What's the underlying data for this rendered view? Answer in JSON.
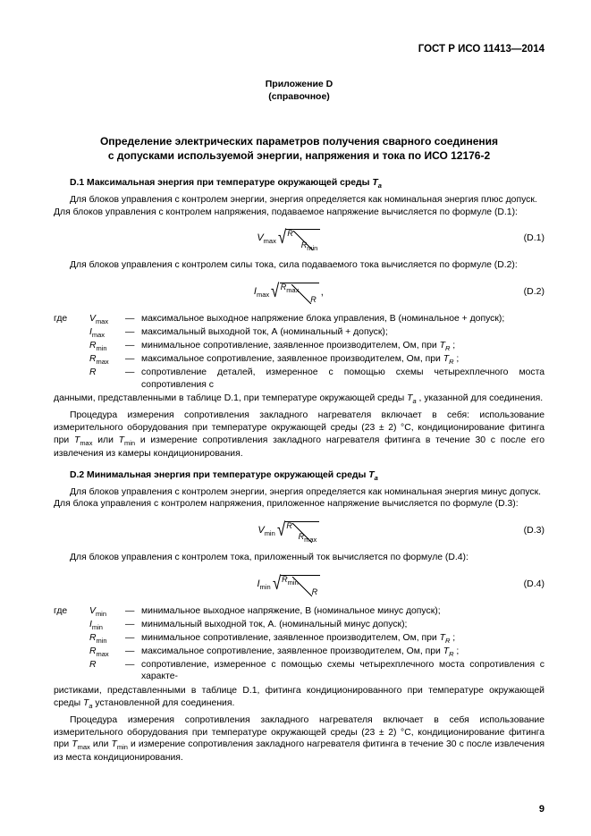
{
  "header": {
    "standard": "ГОСТ Р ИСО 11413—2014"
  },
  "appendix": {
    "label_line1": "Приложение D",
    "label_line2": "(справочное)"
  },
  "title": {
    "line1": "Определение электрических параметров получения сварного соединения",
    "line2": "с допусками используемой энергии, напряжения и тока по ИСО 12176-2"
  },
  "d1": {
    "heading_prefix": "D.1 Максимальная энергия при температуре окружающей среды ",
    "heading_symbol": "T",
    "heading_sub": "a",
    "p1": "Для блоков управления с контролем энергии, энергия определяется как номинальная энергия плюс допуск.",
    "p2": "Для блоков управления с контролем напряжения, подаваемое напряжение вычисляется по формуле (D.1):",
    "eq1": {
      "lhs": "V",
      "lhs_sub": "max",
      "num": "R",
      "den": "R",
      "den_sub": "min",
      "ref": "(D.1)"
    },
    "p3": "Для блоков управления с контролем силы тока, сила подаваемого тока вычисляется по формуле (D.2):",
    "eq2": {
      "lhs": "I",
      "lhs_sub": "max",
      "num": "R",
      "num_sub": "max",
      "den": "R",
      "tail": ",",
      "ref": "(D.2)"
    },
    "defs": [
      {
        "where": "где",
        "sym": "V",
        "sub": "max",
        "dash": "—",
        "text": "максимальное выходное напряжение блока управления, В (номинальное + допуск);"
      },
      {
        "where": "",
        "sym": "I",
        "sub": "max",
        "dash": "—",
        "text": "максимальный выходной ток, А (номинальный + допуск);"
      },
      {
        "where": "",
        "sym": "R",
        "sub": "min",
        "dash": "—",
        "text": "минимальное сопротивление, заявленное производителем, Ом, при T_R ;"
      },
      {
        "where": "",
        "sym": "R",
        "sub": "max",
        "dash": "—",
        "text": "максимальное сопротивление, заявленное производителем, Ом, при T_R ;"
      },
      {
        "where": "",
        "sym": "R",
        "sub": "",
        "dash": "—",
        "text": "сопротивление деталей, измеренное с помощью схемы четырехплечного моста сопротивления с"
      }
    ],
    "def_cont": "данными, представленными в таблице D.1, при температуре окружающей среды T_a , указанной для соединения.",
    "p4": "Процедура измерения сопротивления закладного нагревателя включает в себя: использование измерительного оборудования при температуре окружающей среды (23 ± 2) °С, кондиционирование фитинга при T_max или T_min и измерение сопротивления закладного нагревателя фитинга в течение 30 с после его извлечения из камеры кондиционирования."
  },
  "d2": {
    "heading_prefix": "D.2 Минимальная энергия при температуре окружающей среды ",
    "heading_symbol": "T",
    "heading_sub": "a",
    "p1": "Для блоков управления с контролем энергии, энергия определяется как номинальная энергия минус допуск.",
    "p2": "Для блока управления с контролем напряжения, приложенное напряжение вычисляется по формуле (D.3):",
    "eq3": {
      "lhs": "V",
      "lhs_sub": "min",
      "num": "R",
      "den": "R",
      "den_sub": "max",
      "ref": "(D.3)"
    },
    "p3": "Для блоков управления с контролем тока, приложенный ток вычисляется по формуле (D.4):",
    "eq4": {
      "lhs": "I",
      "lhs_sub": "min",
      "num": "R",
      "num_sub": "min",
      "den": "R",
      "ref": "(D.4)"
    },
    "defs": [
      {
        "where": "где",
        "sym": "V",
        "sub": "min",
        "dash": "—",
        "text": "минимальное выходное напряжение, В (номинальное минус допуск);"
      },
      {
        "where": "",
        "sym": "I",
        "sub": "min",
        "dash": "—",
        "text": "минимальный выходной ток, А. (номинальный минус допуск);"
      },
      {
        "where": "",
        "sym": "R",
        "sub": "min",
        "dash": "—",
        "text": "минимальное сопротивление, заявленное производителем, Ом, при T_R ;"
      },
      {
        "where": "",
        "sym": "R",
        "sub": "max",
        "dash": "—",
        "text": "максимальное сопротивление, заявленное производителем, Ом, при T_R ;"
      },
      {
        "where": "",
        "sym": "R",
        "sub": "",
        "dash": "—",
        "text": "сопротивление, измеренное с помощью схемы четырехплечного моста сопротивления с характе-"
      }
    ],
    "def_cont": "ристиками, представленными в таблице D.1, фитинга кондиционированного при температуре окружающей среды T_a установленной для соединения.",
    "p4": "Процедура измерения сопротивления закладного нагревателя включает в себя использование измерительного оборудования при температуре окружающей среды (23 ± 2) °С, кондиционирование фитинга при T_max или T_min и измерение сопротивления закладного нагревателя фитинга в течение 30 с после извлечения из места кондиционирования."
  },
  "page_number": "9",
  "fonts": {
    "body_size_pt": 8,
    "title_size_pt": 9,
    "header_size_pt": 9
  },
  "colors": {
    "background": "#ffffff",
    "text": "#000000"
  }
}
